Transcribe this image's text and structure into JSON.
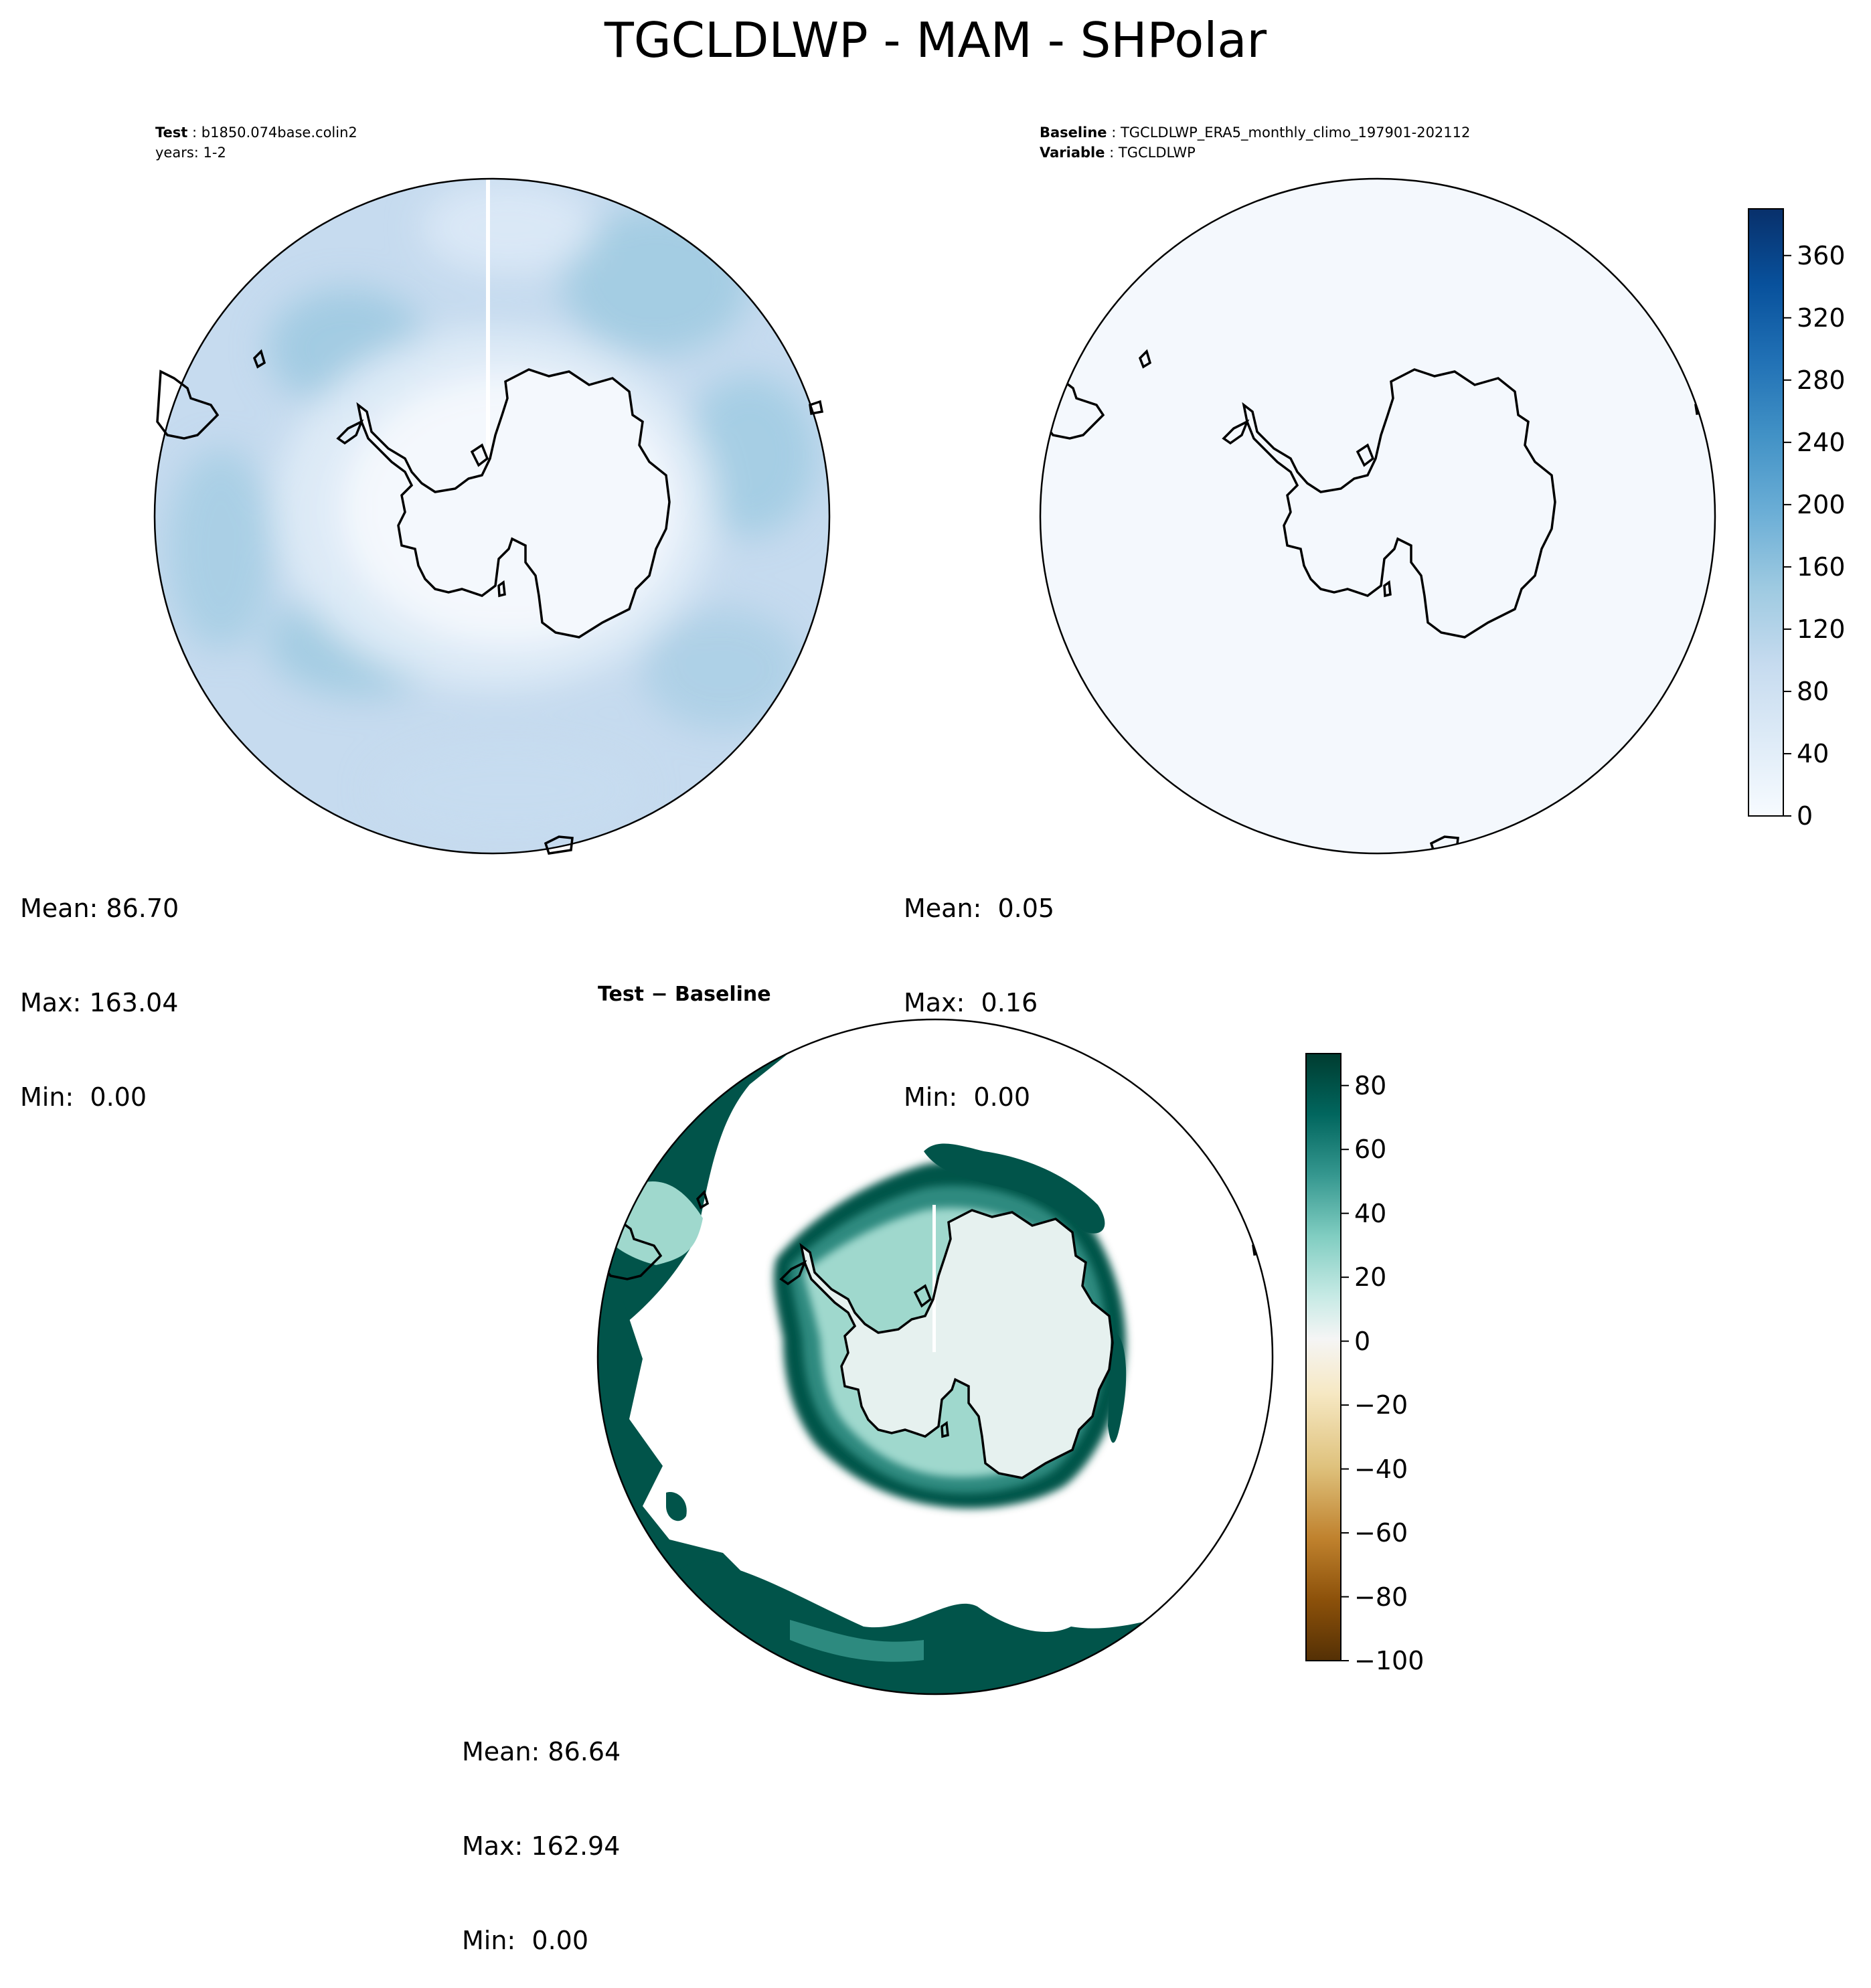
{
  "figure": {
    "title": "TGCLDLWP - MAM - SHPolar"
  },
  "panels": {
    "test": {
      "label_key": "Test",
      "label_value": "b1850.074base.colin2",
      "years": "years: 1-2",
      "stats": {
        "mean": "Mean: 86.70",
        "max": "Max: 163.04",
        "min": "Min:  0.00"
      }
    },
    "baseline": {
      "label_key": "Baseline",
      "label_value": "TGCLDLWP_ERA5_monthly_climo_197901-202112",
      "variable_key": "Variable",
      "variable_value": "TGCLDLWP",
      "stats": {
        "mean": "Mean:  0.05",
        "max": "Max:  0.16",
        "min": "Min:  0.00"
      }
    },
    "difference": {
      "title": "Test − Baseline",
      "stats": {
        "mean": "Mean: 86.64",
        "max": "Max: 162.94",
        "min": "Min:  0.00"
      }
    }
  },
  "colorbars": {
    "sequential": {
      "colormap": "Blues",
      "ticks": [
        "0",
        "40",
        "80",
        "120",
        "160",
        "200",
        "240",
        "280",
        "320",
        "360"
      ],
      "range": [
        0,
        390
      ],
      "colors": [
        "#f7fbff",
        "#deebf7",
        "#c6dbef",
        "#9ecae1",
        "#6baed6",
        "#4292c6",
        "#2171b5",
        "#08519c",
        "#08306b"
      ]
    },
    "diverging": {
      "colormap": "BrBG",
      "ticks": [
        "80",
        "60",
        "40",
        "20",
        "0",
        "−20",
        "−40",
        "−60",
        "−80",
        "−100"
      ],
      "range": [
        -100,
        90
      ],
      "colors": [
        "#543005",
        "#8c510a",
        "#bf812d",
        "#dfc27d",
        "#f6e8c3",
        "#f5f5f5",
        "#c7eae5",
        "#80cdc1",
        "#35978f",
        "#01665e",
        "#003c30"
      ]
    }
  },
  "map": {
    "projection": "south-polar-stereographic",
    "region": "SHPolar",
    "colors": {
      "test_field_light": "#e6eff9",
      "test_field_mid": "#c6dbef",
      "test_field_dark": "#9ecae1",
      "baseline_field": "#f4f8fd",
      "diff_dark": "#01544a",
      "diff_mid": "#2d8a7f",
      "diff_light": "#9fd8cd",
      "diff_pale": "#e6f1ef",
      "coastline": "#000000"
    }
  }
}
